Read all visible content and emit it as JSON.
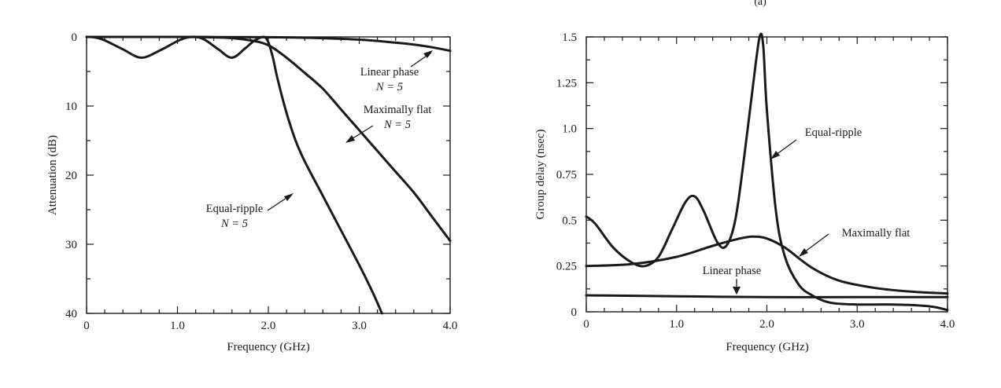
{
  "chart_data": [
    {
      "type": "line",
      "title": "",
      "xlabel": "Frequency (GHz)",
      "ylabel": "Attenuation (dB)",
      "xlim": [
        0,
        4.0
      ],
      "ylim": [
        0,
        40
      ],
      "y_inverted": true,
      "grid": false,
      "legend": "none",
      "x_ticks": [
        "0",
        "1.0",
        "2.0",
        "3.0",
        "4.0"
      ],
      "y_ticks": [
        "0",
        "10",
        "20",
        "30",
        "40"
      ],
      "series": [
        {
          "name": "Linear phase N = 5",
          "x": [
            0,
            0.5,
            1.0,
            1.5,
            2.0,
            2.5,
            3.0,
            3.3,
            3.6,
            3.8,
            4.0
          ],
          "y": [
            0,
            0,
            0,
            0.02,
            0.05,
            0.15,
            0.4,
            0.7,
            1.1,
            1.5,
            2.0
          ]
        },
        {
          "name": "Maximally flat N = 5",
          "x": [
            0,
            0.5,
            1.0,
            1.5,
            1.8,
            2.0,
            2.2,
            2.4,
            2.6,
            2.8,
            3.0,
            3.2,
            3.4,
            3.6,
            3.8,
            4.0
          ],
          "y": [
            0,
            0,
            0,
            0.1,
            0.5,
            1.2,
            3.0,
            5.2,
            7.5,
            10.5,
            13.5,
            16.5,
            19.5,
            22.5,
            26.0,
            29.5
          ]
        },
        {
          "name": "Equal-ripple N = 5",
          "x": [
            0,
            0.1,
            0.2,
            0.4,
            0.6,
            0.8,
            1.0,
            1.1,
            1.2,
            1.3,
            1.45,
            1.6,
            1.75,
            1.85,
            1.95,
            2.0,
            2.05,
            2.1,
            2.2,
            2.3,
            2.4,
            2.6,
            2.8,
            3.0,
            3.15,
            3.25
          ],
          "y": [
            0,
            0.1,
            0.5,
            1.8,
            3.0,
            2.0,
            0.6,
            0.1,
            0,
            0.4,
            1.8,
            3.0,
            1.6,
            0.5,
            0,
            0.8,
            3.0,
            6.0,
            11.0,
            15.0,
            18.0,
            23.0,
            28.0,
            33.0,
            37.0,
            40.0
          ]
        }
      ],
      "annotations": [
        {
          "text": "Linear phase",
          "line2": "N = 5"
        },
        {
          "text": "Maximally flat",
          "line2": "N = 5"
        },
        {
          "text": "Equal-ripple",
          "line2": "N = 5"
        }
      ]
    },
    {
      "type": "line",
      "title": "",
      "xlabel": "Frequency (GHz)",
      "ylabel": "Group delay (nsec)",
      "xlim": [
        0,
        4.0
      ],
      "ylim": [
        0,
        1.5
      ],
      "grid": false,
      "legend": "none",
      "x_ticks": [
        "0",
        "1.0",
        "2.0",
        "3.0",
        "4.0"
      ],
      "y_ticks": [
        "0",
        "0.25",
        "0.5",
        "0.75",
        "1.0",
        "1.25",
        "1.5"
      ],
      "series": [
        {
          "name": "Equal-ripple",
          "x": [
            0,
            0.1,
            0.3,
            0.5,
            0.65,
            0.8,
            0.95,
            1.1,
            1.2,
            1.3,
            1.45,
            1.55,
            1.65,
            1.75,
            1.85,
            1.92,
            1.96,
            2.0,
            2.1,
            2.2,
            2.35,
            2.5,
            2.7,
            3.0,
            3.4,
            3.8,
            4.0
          ],
          "y": [
            0.52,
            0.48,
            0.35,
            0.27,
            0.25,
            0.3,
            0.45,
            0.6,
            0.63,
            0.55,
            0.38,
            0.36,
            0.5,
            0.85,
            1.25,
            1.5,
            1.45,
            1.1,
            0.55,
            0.3,
            0.15,
            0.09,
            0.05,
            0.04,
            0.04,
            0.03,
            0.01
          ]
        },
        {
          "name": "Maximally flat",
          "x": [
            0,
            0.5,
            1.0,
            1.4,
            1.7,
            1.85,
            2.0,
            2.2,
            2.5,
            2.8,
            3.2,
            3.6,
            4.0
          ],
          "y": [
            0.25,
            0.26,
            0.3,
            0.36,
            0.4,
            0.41,
            0.4,
            0.35,
            0.24,
            0.17,
            0.13,
            0.11,
            0.1
          ]
        },
        {
          "name": "Linear phase",
          "x": [
            0,
            1.0,
            2.0,
            3.0,
            4.0
          ],
          "y": [
            0.09,
            0.085,
            0.08,
            0.08,
            0.08
          ]
        }
      ],
      "annotations": [
        {
          "text": "Equal-ripple"
        },
        {
          "text": "Maximally flat"
        },
        {
          "text": "Linear phase"
        }
      ]
    }
  ],
  "cropped_heading": "(a)"
}
